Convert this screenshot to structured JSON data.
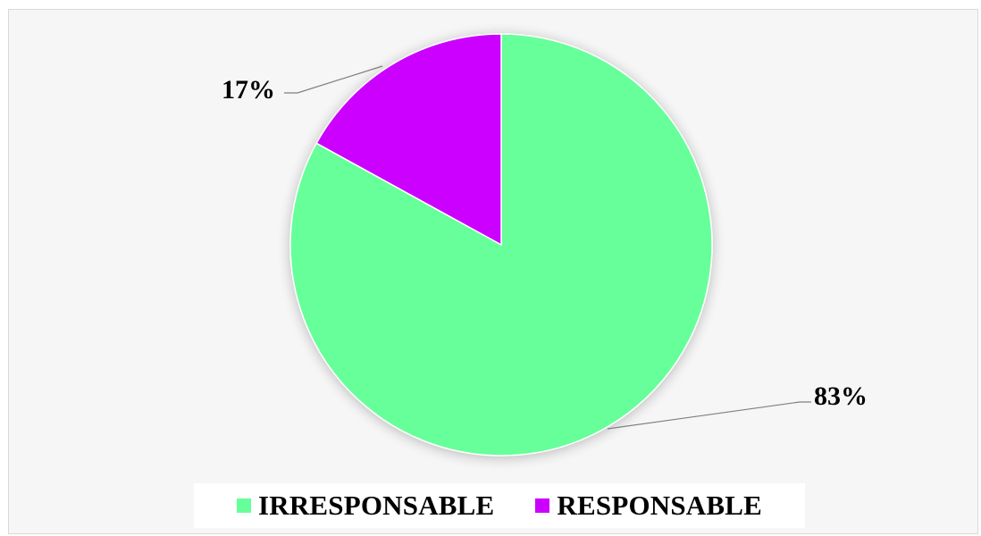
{
  "chart_data": {
    "type": "pie",
    "title": "",
    "slices": [
      {
        "label": "IRRESPONSABLE",
        "value": 83,
        "display": "83%",
        "color": "#66ff99"
      },
      {
        "label": "RESPONSABLE",
        "value": 17,
        "display": "17%",
        "color": "#cc00ff"
      }
    ],
    "legend_position": "bottom"
  },
  "legend": {
    "items": [
      {
        "label": "IRRESPONSABLE",
        "color": "#66ff99"
      },
      {
        "label": "RESPONSABLE",
        "color": "#cc00ff"
      }
    ]
  },
  "labels": {
    "irresponsable_pct": "83%",
    "responsable_pct": "17%"
  }
}
